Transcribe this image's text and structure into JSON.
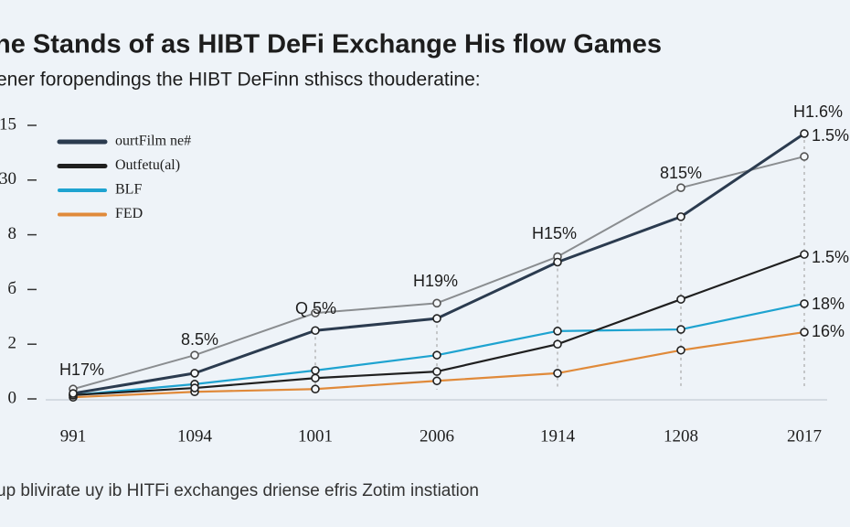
{
  "chart_data": {
    "type": "line",
    "title": "he Stands of as HIBT DeFi Exchange His flow Games",
    "subtitle": "ener foropendings the HIBT DeFinn sthiscs  thouderatine:",
    "footnote": "up blivirate uy ib HITFi exchanges driense efris Zotim instiation",
    "categories": [
      "991",
      "1094",
      "1001",
      "2006",
      "1914",
      "1208",
      "2017"
    ],
    "ylim": [
      0,
      5
    ],
    "yticks": [
      {
        "value": 0,
        "label": "0"
      },
      {
        "value": 1,
        "label": "2"
      },
      {
        "value": 2,
        "label": "б"
      },
      {
        "value": 3,
        "label": "8"
      },
      {
        "value": 4,
        "label": "30"
      },
      {
        "value": 5,
        "label": "15"
      }
    ],
    "series": [
      {
        "name": "ourtFilm ne#",
        "color": "#2b3b4f",
        "values": [
          0.1,
          0.47,
          1.25,
          1.47,
          2.5,
          3.33,
          4.85
        ]
      },
      {
        "name": "Outfetu(al)",
        "color": "#1f1f1f",
        "values": [
          0.07,
          0.2,
          0.38,
          0.5,
          1.0,
          1.82,
          2.64
        ]
      },
      {
        "name": "BLF",
        "color": "#1ea3d0",
        "values": [
          0.07,
          0.27,
          0.52,
          0.8,
          1.24,
          1.27,
          1.74
        ]
      },
      {
        "name": "FED",
        "color": "#e08a3a",
        "values": [
          0.03,
          0.13,
          0.18,
          0.33,
          0.47,
          0.89,
          1.22
        ]
      },
      {
        "color": "#8a8d90",
        "values": [
          0.18,
          0.8,
          1.57,
          1.75,
          2.6,
          3.86,
          4.43
        ]
      }
    ],
    "annotations": [
      "H17%",
      "8.5%",
      "Q 5%",
      "H19%",
      "H15%",
      "815%",
      "H1.6%",
      "1.5%",
      "1.5%",
      "18%",
      "16%"
    ]
  }
}
